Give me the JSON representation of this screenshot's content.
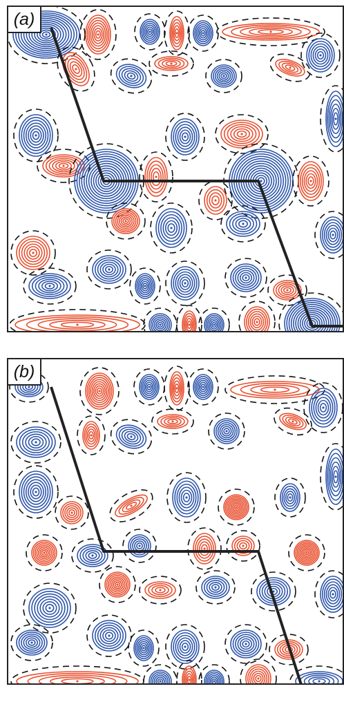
{
  "panels": [
    {
      "id": "a",
      "label": "(a)"
    },
    {
      "id": "b",
      "label": "(b)"
    }
  ],
  "colors": {
    "positive": "#e8502f",
    "negative": "#2d55aa",
    "zero": "#111111",
    "cell": "#222222"
  }
}
